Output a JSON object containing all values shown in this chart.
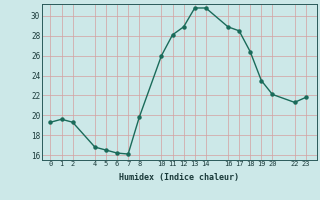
{
  "x": [
    0,
    1,
    2,
    4,
    5,
    6,
    7,
    8,
    10,
    11,
    12,
    13,
    14,
    16,
    17,
    18,
    19,
    20,
    22,
    23
  ],
  "y": [
    19.3,
    19.6,
    19.3,
    16.8,
    16.5,
    16.2,
    16.1,
    19.8,
    26.0,
    28.1,
    28.9,
    30.8,
    30.8,
    28.9,
    28.5,
    26.4,
    23.5,
    22.1,
    21.3,
    21.8
  ],
  "xticks": [
    0,
    1,
    2,
    4,
    5,
    6,
    7,
    8,
    10,
    11,
    12,
    13,
    14,
    16,
    17,
    18,
    19,
    20,
    22,
    23
  ],
  "xtick_labels": [
    "0",
    "1",
    "2",
    "4",
    "5",
    "6",
    "7",
    "8",
    "10",
    "11",
    "12",
    "13",
    "14",
    "16",
    "17",
    "18",
    "19",
    "20",
    "22",
    "23"
  ],
  "yticks": [
    16,
    18,
    20,
    22,
    24,
    26,
    28,
    30
  ],
  "xlabel": "Humidex (Indice chaleur)",
  "line_color": "#1a6b5a",
  "bg_color": "#cce8e8",
  "grid_color": "#b8d4d4",
  "ylim": [
    15.5,
    31.2
  ],
  "xlim": [
    -0.8,
    24.0
  ]
}
